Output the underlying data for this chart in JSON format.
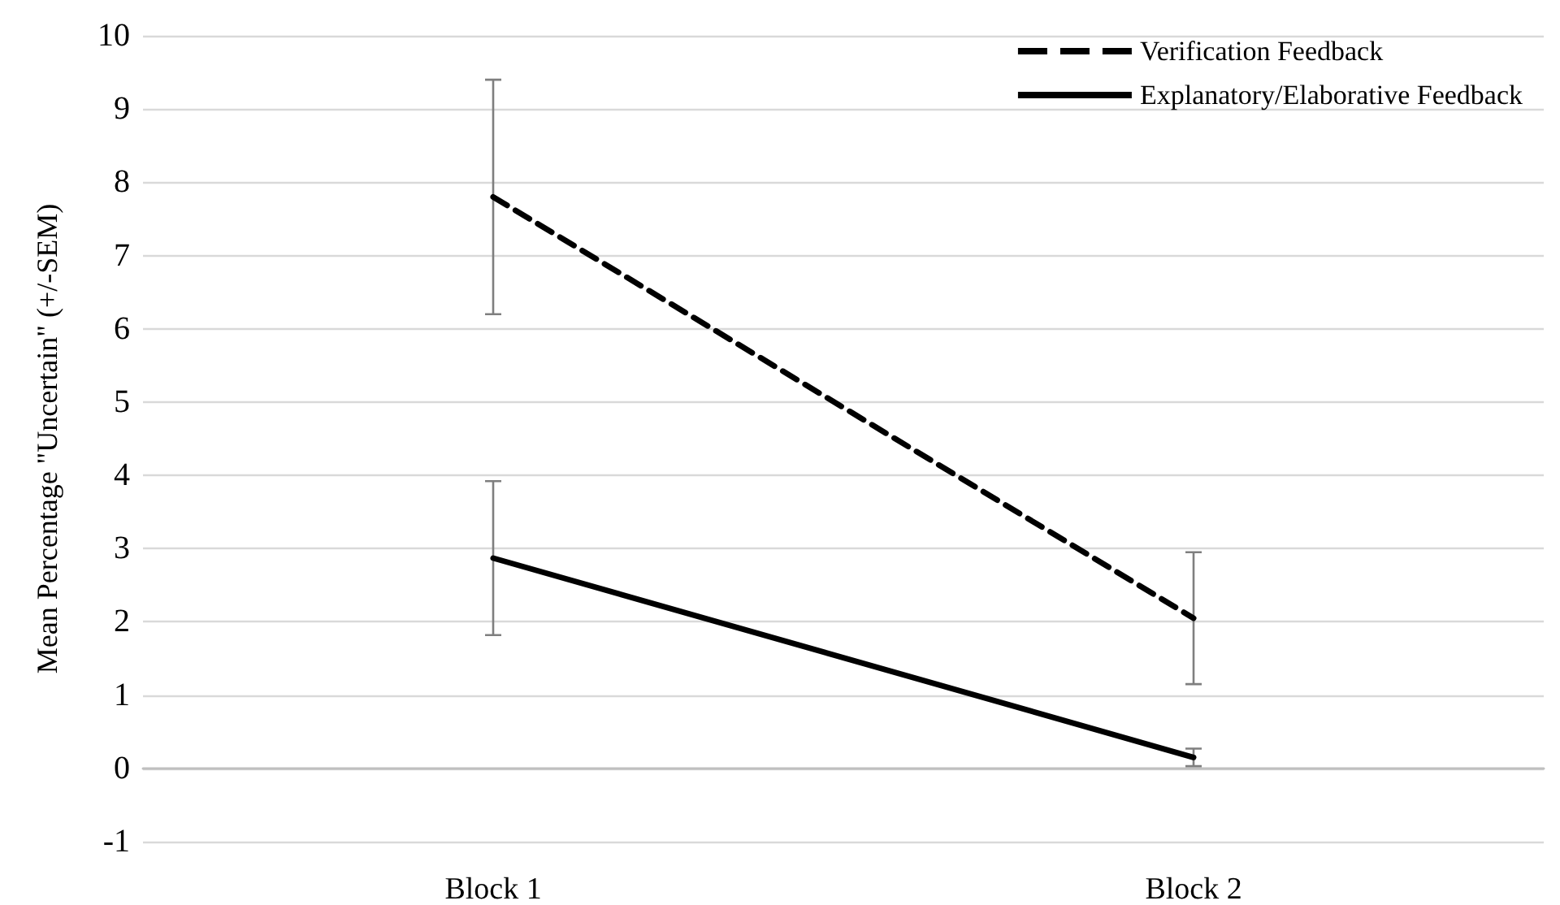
{
  "chart_data": {
    "type": "line",
    "ylabel": "Mean Percentage \"Uncertain\" (+/-SEM)",
    "categories": [
      "Block 1",
      "Block 2"
    ],
    "series": [
      {
        "name": "Verification Feedback",
        "color": "#000000",
        "line_style": "dashed",
        "values": [
          7.8,
          2.05
        ],
        "errors": [
          1.6,
          0.9
        ]
      },
      {
        "name": "Explanatory/Elaborative Feedback",
        "color": "#000000",
        "line_style": "solid",
        "values": [
          2.87,
          0.15
        ],
        "errors": [
          1.05,
          0.12
        ]
      }
    ],
    "ylim": [
      -1,
      10
    ],
    "yticks": [
      -1,
      0,
      1,
      2,
      3,
      4,
      5,
      6,
      7,
      8,
      9,
      10
    ],
    "grid": "y",
    "legend": "top right"
  }
}
